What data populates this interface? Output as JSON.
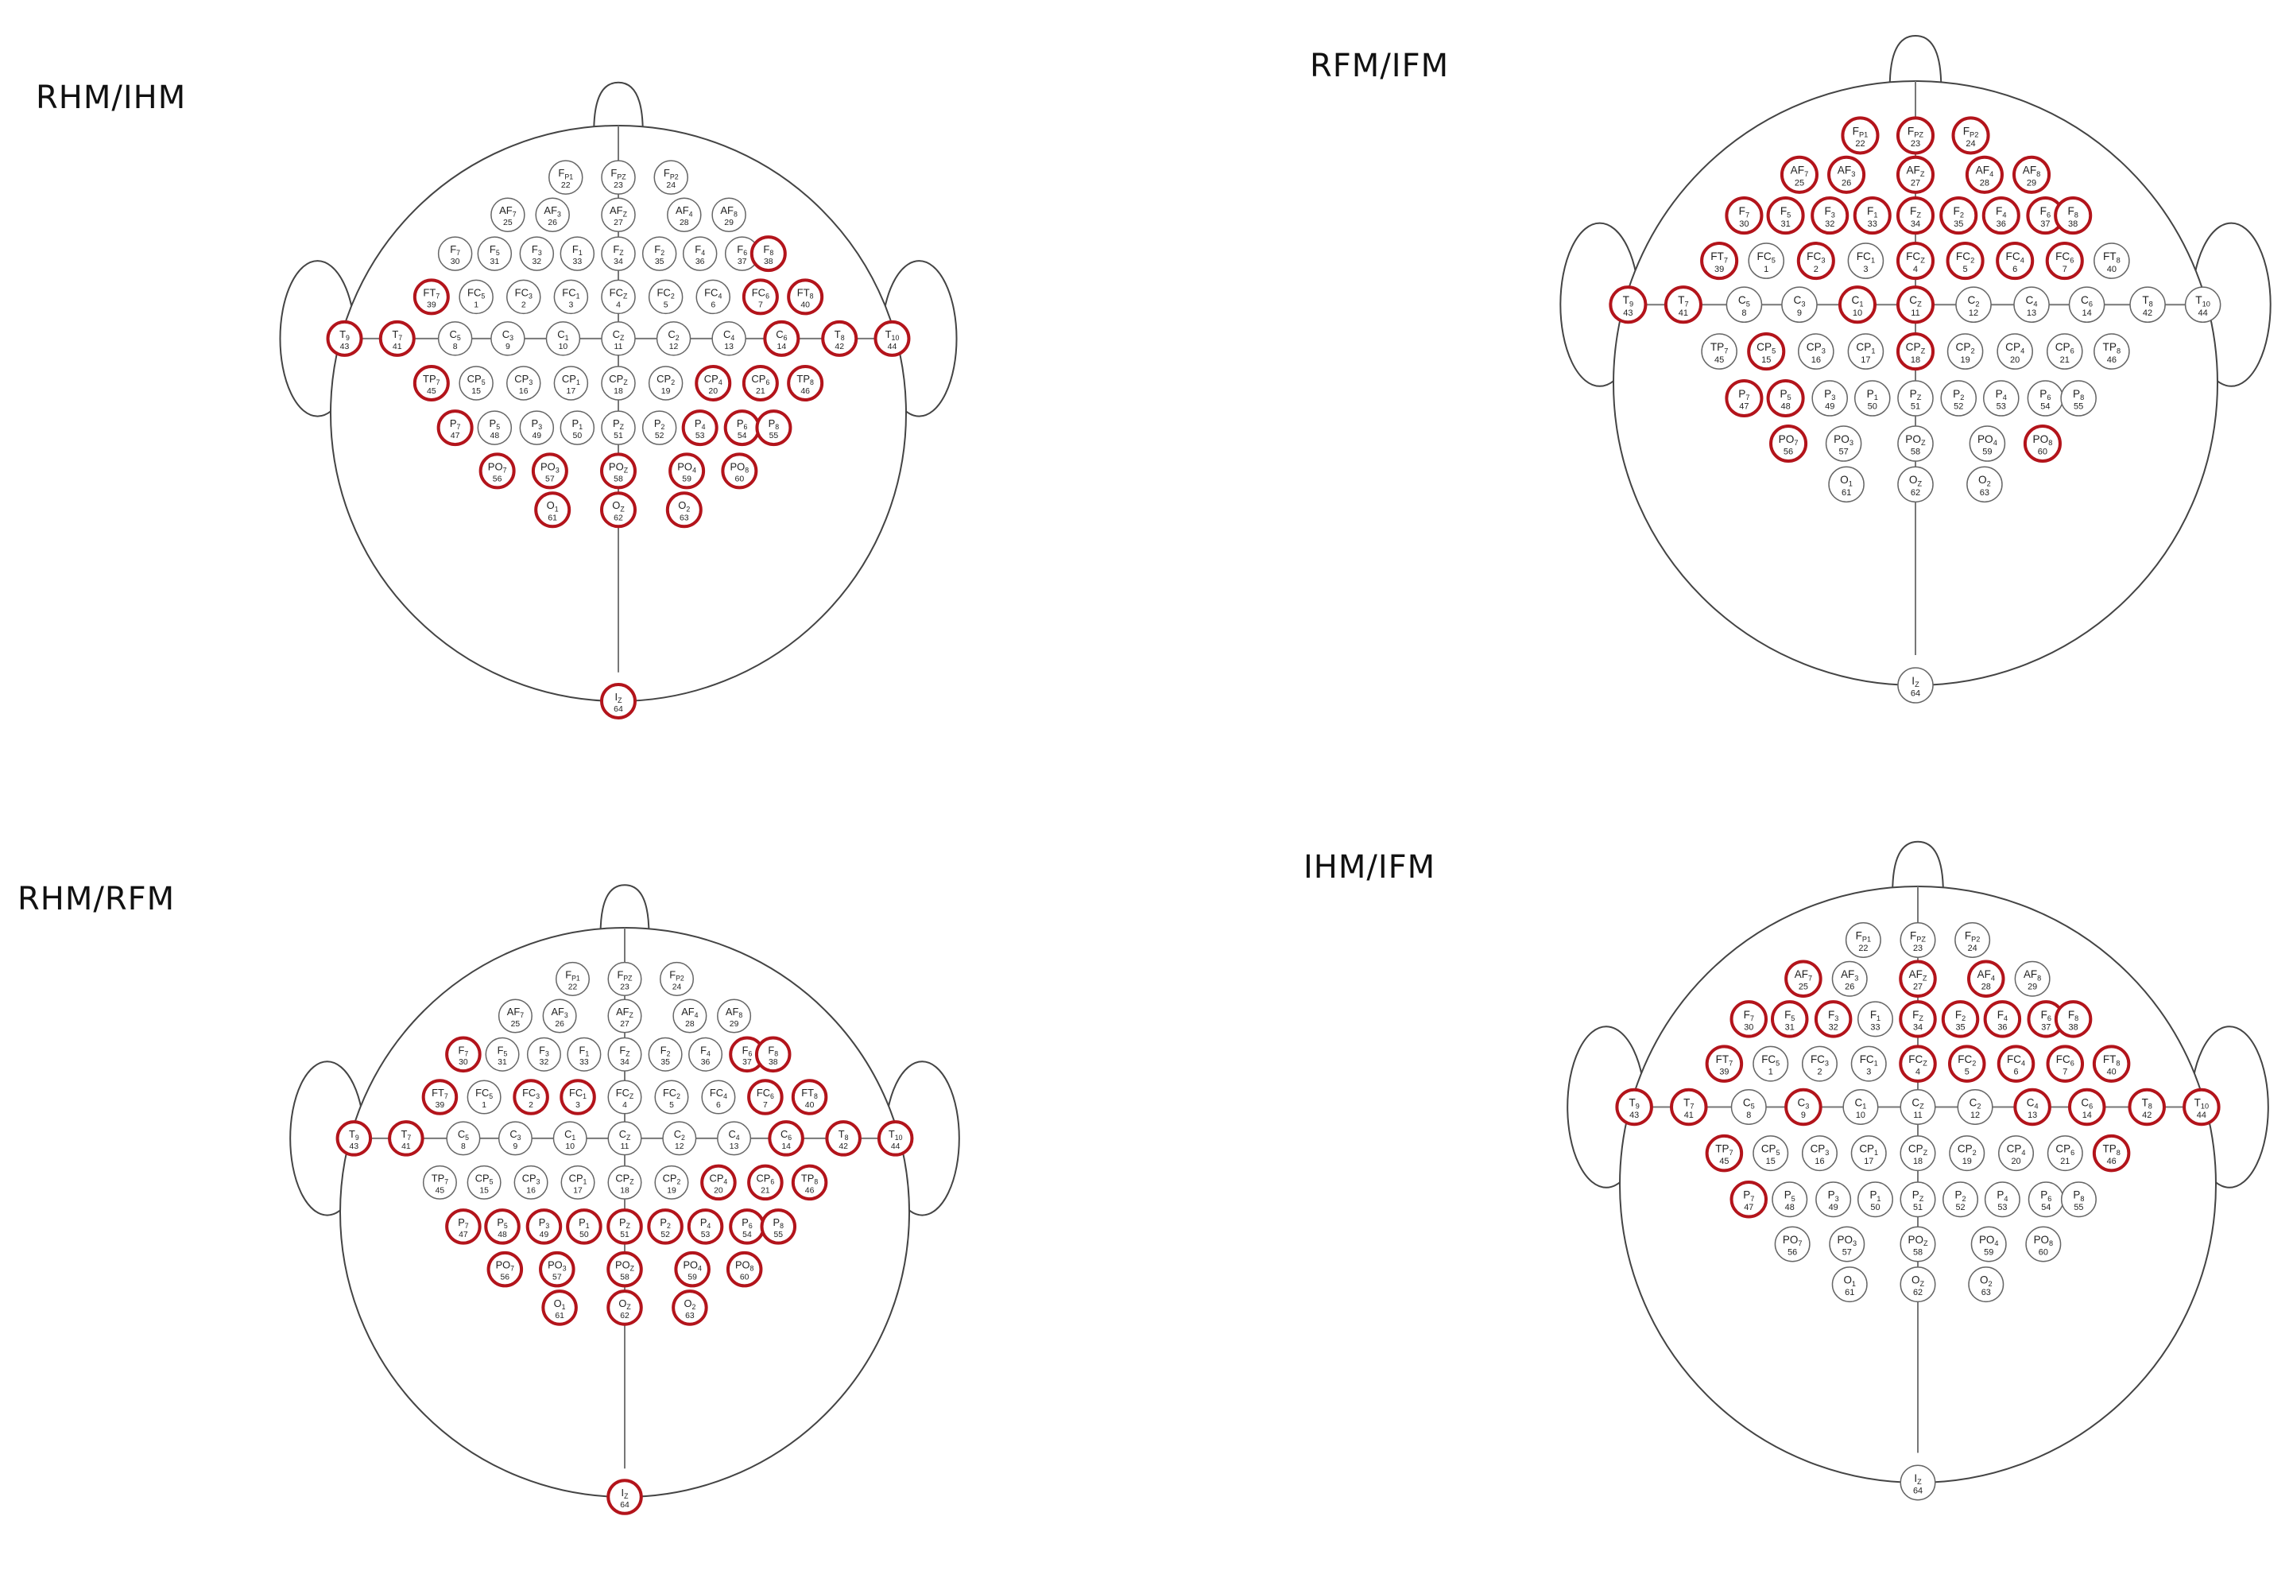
{
  "colors": {
    "highlight": "#b3141b",
    "outline": "#444444",
    "text": "#222222"
  },
  "panels": [
    {
      "title": "RHM/IHM",
      "highlighted": [
        "T9",
        "T7",
        "C6",
        "T8",
        "T10",
        "FT7",
        "FC6",
        "FT8",
        "F8",
        "TP7",
        "CP4",
        "CP6",
        "TP8",
        "P7",
        "P6",
        "P4",
        "P8",
        "PO7",
        "PO3",
        "POz",
        "PO4",
        "PO8",
        "O1",
        "Oz",
        "O2",
        "Iz"
      ]
    },
    {
      "title": "RFM/IFM",
      "highlighted": [
        "Fp1",
        "Fpz",
        "Fp2",
        "AF7",
        "AF3",
        "AFz",
        "AF4",
        "AF8",
        "F7",
        "F5",
        "F3",
        "F1",
        "Fz",
        "F2",
        "F4",
        "F6",
        "F8",
        "FT7",
        "FC3",
        "FCz",
        "FC2",
        "FC4",
        "FC6",
        "T9",
        "T7",
        "C1",
        "Cz",
        "CP5",
        "CPz",
        "P7",
        "P5",
        "PO7",
        "PO8"
      ]
    },
    {
      "title": "RHM/RFM",
      "highlighted": [
        "F7",
        "F6",
        "F8",
        "FT7",
        "FC3",
        "FC1",
        "FC6",
        "FT8",
        "T9",
        "T7",
        "C6",
        "T8",
        "T10",
        "CP4",
        "CP6",
        "TP8",
        "P7",
        "P5",
        "P3",
        "P1",
        "Pz",
        "P2",
        "P4",
        "P6",
        "P8",
        "PO3",
        "POz",
        "PO4",
        "PO8",
        "PO7",
        "O1",
        "Oz",
        "O2",
        "Iz"
      ]
    },
    {
      "title": "IHM/IFM",
      "highlighted": [
        "AF7",
        "AFz",
        "AF4",
        "F7",
        "F5",
        "F3",
        "Fz",
        "F2",
        "F4",
        "F6",
        "F8",
        "FT7",
        "FCz",
        "FC2",
        "FC4",
        "FC6",
        "FT8",
        "T9",
        "T7",
        "C3",
        "C4",
        "C6",
        "T8",
        "T10",
        "TP7",
        "TP8",
        "P7"
      ]
    }
  ],
  "electrodes": [
    {
      "id": "Fp1",
      "letters": "F",
      "sub": "P1",
      "num": "22",
      "row": 0,
      "col": -1
    },
    {
      "id": "Fpz",
      "letters": "F",
      "sub": "PZ",
      "num": "23",
      "row": 0,
      "col": 0
    },
    {
      "id": "Fp2",
      "letters": "F",
      "sub": "P2",
      "num": "24",
      "row": 0,
      "col": 1
    },
    {
      "id": "AF7",
      "letters": "AF",
      "sub": "7",
      "num": "25",
      "row": 1,
      "col": -2.1
    },
    {
      "id": "AF3",
      "letters": "AF",
      "sub": "3",
      "num": "26",
      "row": 1,
      "col": -1.25
    },
    {
      "id": "AFz",
      "letters": "AF",
      "sub": "Z",
      "num": "27",
      "row": 1,
      "col": 0
    },
    {
      "id": "AF4",
      "letters": "AF",
      "sub": "4",
      "num": "28",
      "row": 1,
      "col": 1.25
    },
    {
      "id": "AF8",
      "letters": "AF",
      "sub": "8",
      "num": "29",
      "row": 1,
      "col": 2.1
    },
    {
      "id": "F7",
      "letters": "F",
      "sub": "7",
      "num": "30",
      "row": 2,
      "col": -3.1
    },
    {
      "id": "F5",
      "letters": "F",
      "sub": "5",
      "num": "31",
      "row": 2,
      "col": -2.35
    },
    {
      "id": "F3",
      "letters": "F",
      "sub": "3",
      "num": "32",
      "row": 2,
      "col": -1.55
    },
    {
      "id": "F1",
      "letters": "F",
      "sub": "1",
      "num": "33",
      "row": 2,
      "col": -0.78
    },
    {
      "id": "Fz",
      "letters": "F",
      "sub": "Z",
      "num": "34",
      "row": 2,
      "col": 0
    },
    {
      "id": "F2",
      "letters": "F",
      "sub": "2",
      "num": "35",
      "row": 2,
      "col": 0.78
    },
    {
      "id": "F4",
      "letters": "F",
      "sub": "4",
      "num": "36",
      "row": 2,
      "col": 1.55
    },
    {
      "id": "F6",
      "letters": "F",
      "sub": "6",
      "num": "37",
      "row": 2,
      "col": 2.35
    },
    {
      "id": "F8",
      "letters": "F",
      "sub": "8",
      "num": "38",
      "row": 2,
      "col": 2.85
    },
    {
      "id": "FT7",
      "letters": "FT",
      "sub": "7",
      "num": "39",
      "row": 3,
      "col": -3.55
    },
    {
      "id": "FC5",
      "letters": "FC",
      "sub": "5",
      "num": "1",
      "row": 3,
      "col": -2.7
    },
    {
      "id": "FC3",
      "letters": "FC",
      "sub": "3",
      "num": "2",
      "row": 3,
      "col": -1.8
    },
    {
      "id": "FC1",
      "letters": "FC",
      "sub": "1",
      "num": "3",
      "row": 3,
      "col": -0.9
    },
    {
      "id": "FCz",
      "letters": "FC",
      "sub": "Z",
      "num": "4",
      "row": 3,
      "col": 0
    },
    {
      "id": "FC2",
      "letters": "FC",
      "sub": "2",
      "num": "5",
      "row": 3,
      "col": 0.9
    },
    {
      "id": "FC4",
      "letters": "FC",
      "sub": "4",
      "num": "6",
      "row": 3,
      "col": 1.8
    },
    {
      "id": "FC6",
      "letters": "FC",
      "sub": "6",
      "num": "7",
      "row": 3,
      "col": 2.7
    },
    {
      "id": "FT8",
      "letters": "FT",
      "sub": "8",
      "num": "40",
      "row": 3,
      "col": 3.55
    },
    {
      "id": "T9",
      "letters": "T",
      "sub": "9",
      "num": "43",
      "row": 4,
      "col": -5.2
    },
    {
      "id": "T7",
      "letters": "T",
      "sub": "7",
      "num": "41",
      "row": 4,
      "col": -4.2
    },
    {
      "id": "C5",
      "letters": "C",
      "sub": "5",
      "num": "8",
      "row": 4,
      "col": -3.1
    },
    {
      "id": "C3",
      "letters": "C",
      "sub": "3",
      "num": "9",
      "row": 4,
      "col": -2.1
    },
    {
      "id": "C1",
      "letters": "C",
      "sub": "1",
      "num": "10",
      "row": 4,
      "col": -1.05
    },
    {
      "id": "Cz",
      "letters": "C",
      "sub": "Z",
      "num": "11",
      "row": 4,
      "col": 0
    },
    {
      "id": "C2",
      "letters": "C",
      "sub": "2",
      "num": "12",
      "row": 4,
      "col": 1.05
    },
    {
      "id": "C4",
      "letters": "C",
      "sub": "4",
      "num": "13",
      "row": 4,
      "col": 2.1
    },
    {
      "id": "C6",
      "letters": "C",
      "sub": "6",
      "num": "14",
      "row": 4,
      "col": 3.1
    },
    {
      "id": "T8",
      "letters": "T",
      "sub": "8",
      "num": "42",
      "row": 4,
      "col": 4.2
    },
    {
      "id": "T10",
      "letters": "T",
      "sub": "10",
      "num": "44",
      "row": 4,
      "col": 5.2
    },
    {
      "id": "TP7",
      "letters": "TP",
      "sub": "7",
      "num": "45",
      "row": 5,
      "col": -3.55
    },
    {
      "id": "CP5",
      "letters": "CP",
      "sub": "5",
      "num": "15",
      "row": 5,
      "col": -2.7
    },
    {
      "id": "CP3",
      "letters": "CP",
      "sub": "3",
      "num": "16",
      "row": 5,
      "col": -1.8
    },
    {
      "id": "CP1",
      "letters": "CP",
      "sub": "1",
      "num": "17",
      "row": 5,
      "col": -0.9
    },
    {
      "id": "CPz",
      "letters": "CP",
      "sub": "Z",
      "num": "18",
      "row": 5,
      "col": 0
    },
    {
      "id": "CP2",
      "letters": "CP",
      "sub": "2",
      "num": "19",
      "row": 5,
      "col": 0.9
    },
    {
      "id": "CP4",
      "letters": "CP",
      "sub": "4",
      "num": "20",
      "row": 5,
      "col": 1.8
    },
    {
      "id": "CP6",
      "letters": "CP",
      "sub": "6",
      "num": "21",
      "row": 5,
      "col": 2.7
    },
    {
      "id": "TP8",
      "letters": "TP",
      "sub": "8",
      "num": "46",
      "row": 5,
      "col": 3.55
    },
    {
      "id": "P7",
      "letters": "P",
      "sub": "7",
      "num": "47",
      "row": 6,
      "col": -3.1
    },
    {
      "id": "P5",
      "letters": "P",
      "sub": "5",
      "num": "48",
      "row": 6,
      "col": -2.35
    },
    {
      "id": "P3",
      "letters": "P",
      "sub": "3",
      "num": "49",
      "row": 6,
      "col": -1.55
    },
    {
      "id": "P1",
      "letters": "P",
      "sub": "1",
      "num": "50",
      "row": 6,
      "col": -0.78
    },
    {
      "id": "Pz",
      "letters": "P",
      "sub": "Z",
      "num": "51",
      "row": 6,
      "col": 0
    },
    {
      "id": "P2",
      "letters": "P",
      "sub": "2",
      "num": "52",
      "row": 6,
      "col": 0.78
    },
    {
      "id": "P4",
      "letters": "P",
      "sub": "4",
      "num": "53",
      "row": 6,
      "col": 1.55
    },
    {
      "id": "P6",
      "letters": "P",
      "sub": "6",
      "num": "54",
      "row": 6,
      "col": 2.35
    },
    {
      "id": "P8",
      "letters": "P",
      "sub": "8",
      "num": "55",
      "row": 6,
      "col": 2.95
    },
    {
      "id": "PO7",
      "letters": "PO",
      "sub": "7",
      "num": "56",
      "row": 7,
      "col": -2.3
    },
    {
      "id": "PO3",
      "letters": "PO",
      "sub": "3",
      "num": "57",
      "row": 7,
      "col": -1.3
    },
    {
      "id": "POz",
      "letters": "PO",
      "sub": "Z",
      "num": "58",
      "row": 7,
      "col": 0
    },
    {
      "id": "PO4",
      "letters": "PO",
      "sub": "4",
      "num": "59",
      "row": 7,
      "col": 1.3
    },
    {
      "id": "PO8",
      "letters": "PO",
      "sub": "8",
      "num": "60",
      "row": 7,
      "col": 2.3
    },
    {
      "id": "O1",
      "letters": "O",
      "sub": "1",
      "num": "61",
      "row": 8,
      "col": -1.25
    },
    {
      "id": "Oz",
      "letters": "O",
      "sub": "Z",
      "num": "62",
      "row": 8,
      "col": 0
    },
    {
      "id": "O2",
      "letters": "O",
      "sub": "2",
      "num": "63",
      "row": 8,
      "col": 1.25
    },
    {
      "id": "Iz",
      "letters": "I",
      "sub": "Z",
      "num": "64",
      "row": 9,
      "col": 0
    }
  ]
}
